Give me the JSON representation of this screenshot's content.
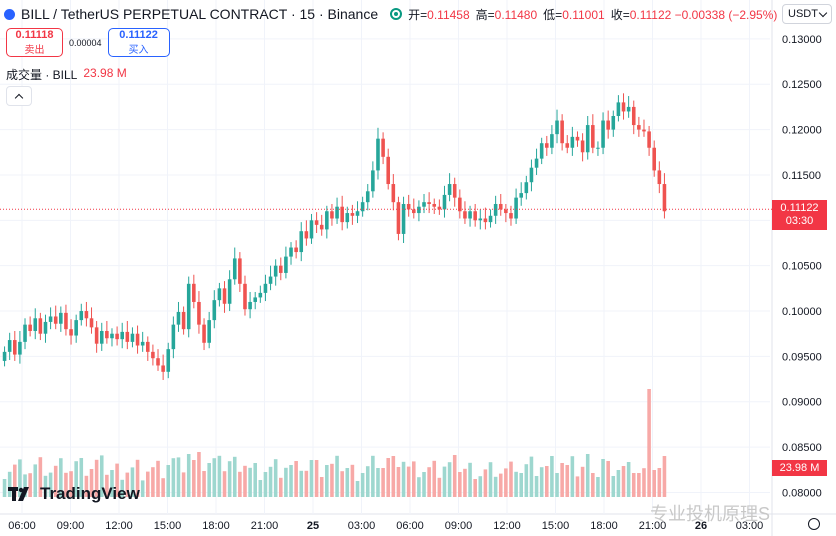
{
  "header": {
    "symbol": "BILL / TetherUS PERPETUAL CONTRACT · 15 · Binance",
    "ohlc": [
      {
        "key": "开=",
        "value": "0.11458"
      },
      {
        "key": "高=",
        "value": "0.11480"
      },
      {
        "key": "低=",
        "value": "0.11001"
      },
      {
        "key": "收=",
        "value": "0.11122 −0.00338 (−2.95%)"
      }
    ],
    "currency": "USDT"
  },
  "trade": {
    "sell_price": "0.11118",
    "sell_label": "卖出",
    "spread": "0.00004",
    "buy_price": "0.11122",
    "buy_label": "买入"
  },
  "volume_legend": {
    "label": "成交量 · BILL",
    "value": "23.98 M"
  },
  "price_tag": {
    "price": "0.11122",
    "countdown": "03:30"
  },
  "volume_tag": "23.98 M",
  "brand": {
    "logo": "TradingView"
  },
  "watermark": "专业投机原理S",
  "colors": {
    "up": "#26a69a",
    "down": "#ef5350",
    "up_vol": "#9ed7cf",
    "down_vol": "#f7a9a7",
    "last_price": "#f23645"
  },
  "icons": [
    "coin-icon",
    "eye-icon",
    "chevron-down-icon",
    "chevron-up-icon",
    "settings-icon"
  ],
  "chart_data": {
    "type": "candlestick",
    "title": "BILL / TetherUS PERPETUAL CONTRACT · 15 · Binance",
    "interval": "15",
    "y_ticks": [
      "0.13000",
      "0.12500",
      "0.12000",
      "0.11500",
      "0.11000",
      "0.10500",
      "0.10000",
      "0.09500",
      "0.09000",
      "0.08500",
      "0.08000"
    ],
    "ylim": [
      0.0795,
      0.1312
    ],
    "x_ticks": [
      "06:00",
      "09:00",
      "12:00",
      "15:00",
      "18:00",
      "21:00",
      "25",
      "03:00",
      "06:00",
      "09:00",
      "12:00",
      "15:00",
      "18:00",
      "21:00",
      "26",
      "03:00"
    ],
    "last_price": 0.11122,
    "candles_close": [
      0.0955,
      0.0968,
      0.0952,
      0.0966,
      0.0985,
      0.0978,
      0.0992,
      0.0975,
      0.0988,
      0.0994,
      0.0986,
      0.0998,
      0.098,
      0.0973,
      0.099,
      0.1,
      0.0992,
      0.0982,
      0.0964,
      0.0978,
      0.097,
      0.0975,
      0.0969,
      0.0977,
      0.0966,
      0.0975,
      0.0962,
      0.0966,
      0.0955,
      0.0948,
      0.094,
      0.0933,
      0.0958,
      0.0985,
      0.0999,
      0.098,
      0.103,
      0.101,
      0.0985,
      0.0965,
      0.099,
      0.1012,
      0.1025,
      0.1008,
      0.1035,
      0.1058,
      0.103,
      0.1002,
      0.101,
      0.1015,
      0.102,
      0.103,
      0.1038,
      0.105,
      0.1042,
      0.106,
      0.107,
      0.1065,
      0.1088,
      0.108,
      0.11,
      0.1095,
      0.109,
      0.111,
      0.1102,
      0.1115,
      0.1098,
      0.1108,
      0.1105,
      0.111,
      0.112,
      0.1132,
      0.1155,
      0.119,
      0.117,
      0.114,
      0.112,
      0.1085,
      0.1118,
      0.1112,
      0.1108,
      0.1115,
      0.112,
      0.1118,
      0.1115,
      0.1112,
      0.1128,
      0.114,
      0.1125,
      0.111,
      0.1102,
      0.111,
      0.11,
      0.1102,
      0.1098,
      0.1105,
      0.1118,
      0.1112,
      0.1108,
      0.1102,
      0.1125,
      0.113,
      0.1142,
      0.1158,
      0.1168,
      0.1185,
      0.118,
      0.1195,
      0.121,
      0.1185,
      0.118,
      0.1192,
      0.1188,
      0.1175,
      0.1205,
      0.118,
      0.118,
      0.121,
      0.12,
      0.1215,
      0.123,
      0.122,
      0.1225,
      0.1205,
      0.12,
      0.1198,
      0.118,
      0.1155,
      0.114,
      0.111
    ],
    "volume_note": "volume histogram, last bar 23.98 M"
  }
}
